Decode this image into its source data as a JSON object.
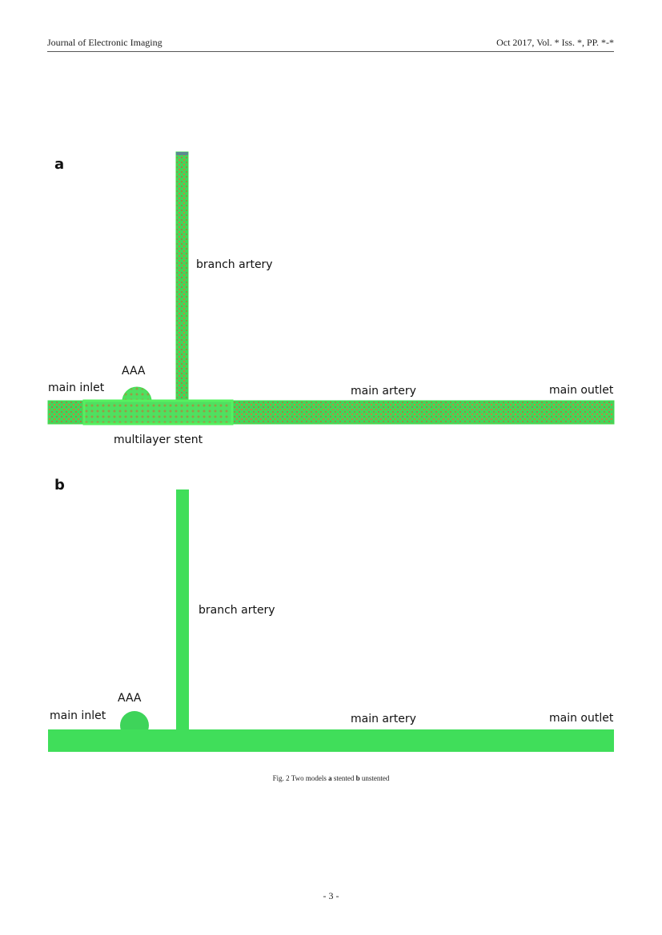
{
  "header": {
    "journal": "Journal of Electronic Imaging",
    "issue": "Oct 2017, Vol. * Iss. *, PP. *-*"
  },
  "figure": {
    "panels": [
      {
        "letter": "a",
        "labels": {
          "branch": "branch artery",
          "aaa": "AAA",
          "inlet": "main inlet",
          "artery": "main artery",
          "outlet": "main outlet",
          "stent": "multilayer stent"
        }
      },
      {
        "letter": "b",
        "labels": {
          "branch": "branch artery",
          "aaa": "AAA",
          "inlet": "main inlet",
          "artery": "main artery",
          "outlet": "main outlet"
        }
      }
    ],
    "caption": {
      "prefix": "Fig. 2 Two models ",
      "a": "a",
      "a_text": " stented ",
      "b": "b",
      "b_text": " unstented"
    }
  },
  "footer": {
    "page": "- 3 -"
  }
}
